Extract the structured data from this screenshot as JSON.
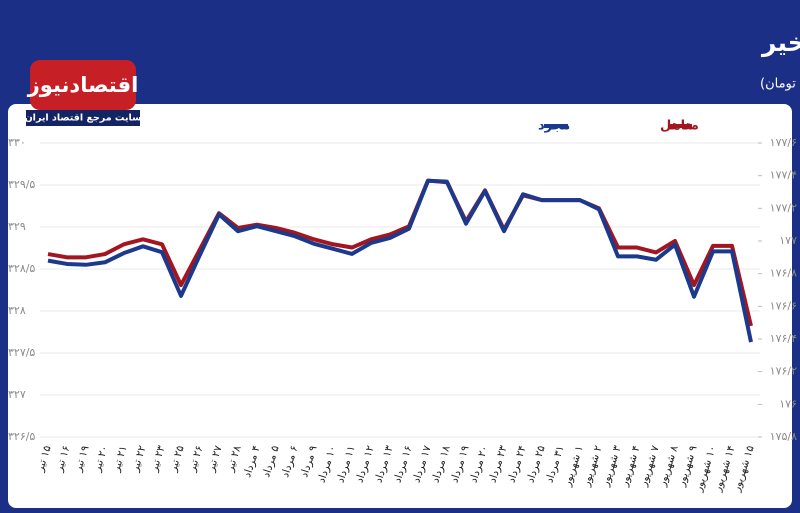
{
  "chart_data": {
    "type": "line",
    "title": "روند هزینه نهایی وام مسکن دردو ماه اخیر",
    "subtitle": "(واحد: میلیون تومان)",
    "logo": {
      "name": "اقتصادنیوز",
      "tagline": "سایت مرجع اقتصاد ایران"
    },
    "categories": [
      "۱۵ تیر",
      "۱۶ تیر",
      "۱۹ تیر",
      "۲۰ تیر",
      "۲۱ تیر",
      "۲۲ تیر",
      "۲۳ تیر",
      "۲۵ تیر",
      "۲۶ تیر",
      "۲۷ تیر",
      "۲۸ تیر",
      "۴ مرداد",
      "۵ مرداد",
      "۶ مرداد",
      "۹ مرداد",
      "۱۰ مرداد",
      "۱۱ مرداد",
      "۱۲ مرداد",
      "۱۳ مرداد",
      "۱۶ مرداد",
      "۱۷ مرداد",
      "۱۸ مرداد",
      "۱۹ مرداد",
      "۲۰ مرداد",
      "۲۳ مرداد",
      "۲۴ مرداد",
      "۲۵ مرداد",
      "۳۱ مرداد",
      "۱ شهریور",
      "۲ شهریور",
      "۳ شهریور",
      "۴ شهریور",
      "۷ شهریور",
      "۸ شهریور",
      "۹ شهریور",
      "۱۰ شهریور",
      "۱۴ شهریور",
      "۱۵ شهریور"
    ],
    "series": [
      {
        "name": "متاهل",
        "color": "#a3161f",
        "axis": "y2",
        "values": [
          176.92,
          176.9,
          176.9,
          176.92,
          176.98,
          177.01,
          176.98,
          176.73,
          176.95,
          177.17,
          177.08,
          177.1,
          177.08,
          177.05,
          177.01,
          176.98,
          176.96,
          177.01,
          177.04,
          177.09,
          177.37,
          177.36,
          177.12,
          177.31,
          177.07,
          177.28,
          177.25,
          177.25,
          177.25,
          177.2,
          176.96,
          176.96,
          176.93,
          177.0,
          176.73,
          176.97,
          176.97,
          176.48
        ]
      },
      {
        "name": "مجرد",
        "color": "#1b3a8e",
        "values": [
          328.6,
          328.56,
          328.55,
          328.58,
          328.69,
          328.77,
          328.7,
          328.18,
          328.67,
          329.15,
          328.95,
          329.01,
          328.95,
          328.89,
          328.8,
          328.74,
          328.68,
          328.81,
          328.87,
          328.98,
          329.55,
          329.54,
          329.04,
          329.43,
          328.95,
          329.39,
          329.32,
          329.32,
          329.32,
          329.21,
          328.65,
          328.65,
          328.61,
          328.79,
          328.17,
          328.71,
          328.71,
          327.63
        ]
      }
    ],
    "ylim": [
      326.5,
      330
    ],
    "yticks": [
      {
        "value": 330,
        "label": "۳۳۰"
      },
      {
        "value": 329.5,
        "label": "۳۲۹/۵"
      },
      {
        "value": 329,
        "label": "۳۲۹"
      },
      {
        "value": 328.5,
        "label": "۳۲۸/۵"
      },
      {
        "value": 328,
        "label": "۳۲۸"
      },
      {
        "value": 327.5,
        "label": "۳۲۷/۵"
      },
      {
        "value": 327,
        "label": "۳۲۷"
      },
      {
        "value": 326.5,
        "label": "۳۲۶/۵"
      }
    ],
    "y2lim": [
      175.8,
      177.6
    ],
    "y2ticks": [
      {
        "value": 177.6,
        "label": "۱۷۷/۶"
      },
      {
        "value": 177.4,
        "label": "۱۷۷/۴"
      },
      {
        "value": 177.2,
        "label": "۱۷۷/۲"
      },
      {
        "value": 177,
        "label": "۱۷۷"
      },
      {
        "value": 176.8,
        "label": "۱۷۶/۸"
      },
      {
        "value": 176.6,
        "label": "۱۷۶/۶"
      },
      {
        "value": 176.4,
        "label": "۱۷۶/۴"
      },
      {
        "value": 176.2,
        "label": "۱۷۶/۲"
      },
      {
        "value": 176,
        "label": "۱۷۶"
      },
      {
        "value": 175.8,
        "label": "۱۷۵/۸"
      }
    ],
    "grid": true
  }
}
